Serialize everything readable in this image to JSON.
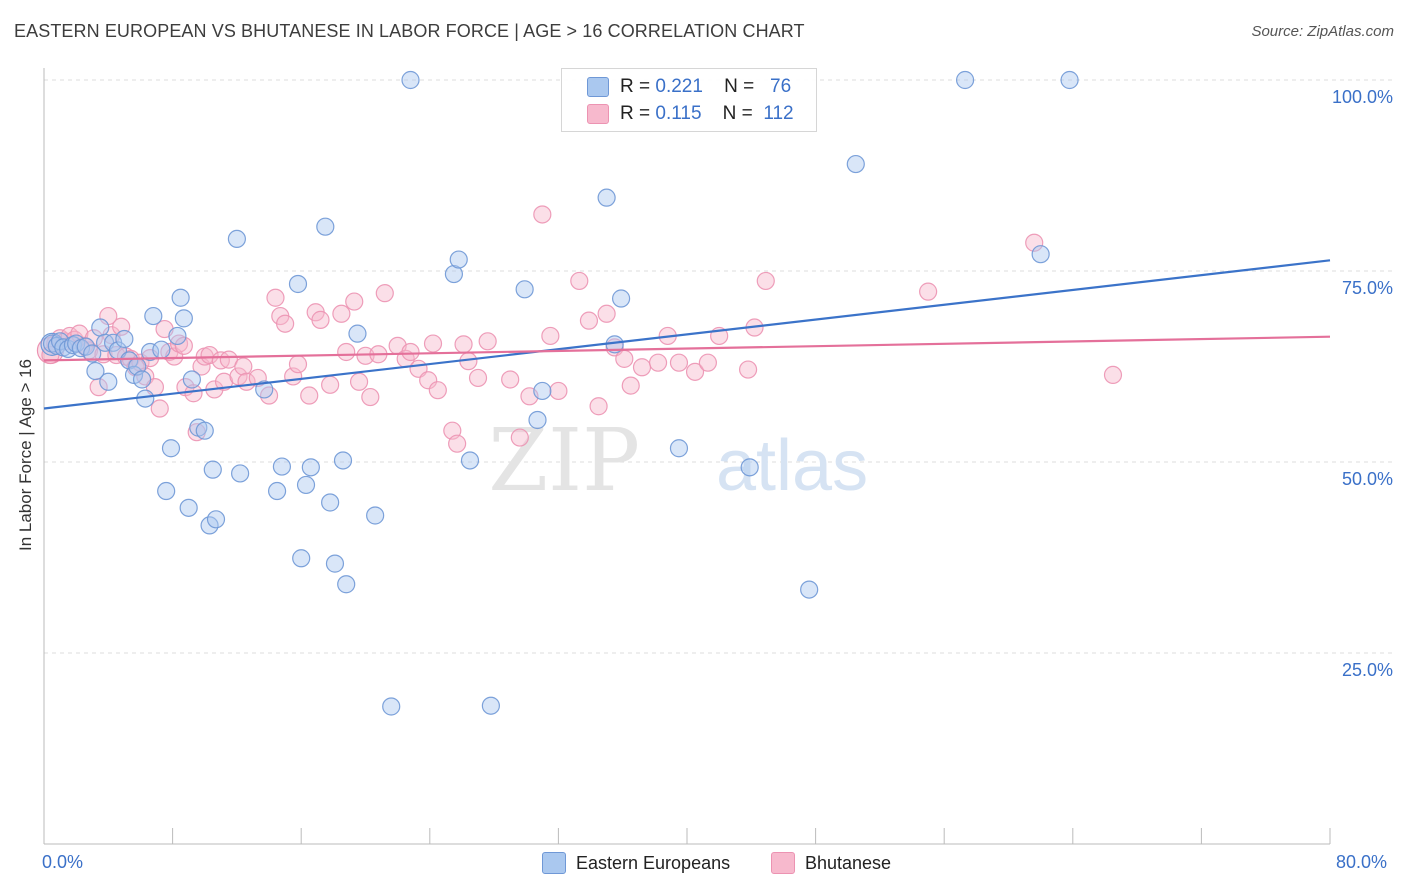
{
  "header": {
    "title": "EASTERN EUROPEAN VS BHUTANESE IN LABOR FORCE | AGE > 16 CORRELATION CHART",
    "source": "Source: ZipAtlas.com"
  },
  "legend": {
    "rows": [
      {
        "r_label": "R =",
        "r_value": "0.221",
        "n_label": "N =",
        "n_value": "76"
      },
      {
        "r_label": "R =",
        "r_value": "0.115",
        "n_label": "N =",
        "n_value": "112"
      }
    ]
  },
  "bottom_legend": {
    "eastern": "Eastern Europeans",
    "bhutanese": "Bhutanese"
  },
  "watermark": {
    "zip": "ZIP",
    "atlas": "atlas"
  },
  "colors": {
    "blue": "#3b73c9",
    "blue_fill": "#aac8ef",
    "pink": "#e4709a",
    "pink_fill": "#f7b9cd",
    "tick_text": "#3a70c8"
  },
  "chart_data": {
    "type": "scatter",
    "title": "EASTERN EUROPEAN VS BHUTANESE IN LABOR FORCE | AGE > 16 CORRELATION CHART",
    "xlabel": "",
    "ylabel": "In Labor Force | Age > 16",
    "xlim": [
      0,
      80
    ],
    "ylim": [
      0,
      104
    ],
    "x_tick_labels": [
      "0.0%",
      "80.0%"
    ],
    "y_tick_labels": [
      "25.0%",
      "50.0%",
      "75.0%",
      "100.0%"
    ],
    "y_ticks": [
      25,
      50,
      75,
      100
    ],
    "grid": "horizontal dashed",
    "legend_position": "top-center",
    "series": [
      {
        "name": "Eastern Europeans",
        "color": "#3b73c9",
        "trend": {
          "x": [
            0,
            80
          ],
          "y": [
            57.0,
            76.4
          ]
        },
        "points": [
          [
            0.5,
            65.5
          ],
          [
            0.8,
            65.2
          ],
          [
            1.0,
            65.8
          ],
          [
            1.2,
            65.0
          ],
          [
            1.5,
            64.8
          ],
          [
            1.8,
            65.3
          ],
          [
            2.0,
            65.5
          ],
          [
            2.3,
            64.9
          ],
          [
            2.6,
            65.1
          ],
          [
            3.0,
            64.2
          ],
          [
            3.2,
            61.9
          ],
          [
            3.5,
            67.6
          ],
          [
            3.8,
            65.6
          ],
          [
            4.0,
            60.5
          ],
          [
            4.3,
            65.6
          ],
          [
            4.6,
            64.6
          ],
          [
            5.0,
            66.1
          ],
          [
            5.3,
            63.3
          ],
          [
            5.6,
            61.4
          ],
          [
            5.8,
            62.5
          ],
          [
            6.1,
            60.8
          ],
          [
            6.3,
            58.3
          ],
          [
            6.6,
            64.4
          ],
          [
            6.8,
            69.1
          ],
          [
            7.3,
            64.7
          ],
          [
            7.6,
            46.2
          ],
          [
            7.9,
            51.8
          ],
          [
            8.3,
            66.5
          ],
          [
            8.5,
            71.5
          ],
          [
            8.7,
            68.8
          ],
          [
            9.0,
            44.0
          ],
          [
            9.2,
            60.8
          ],
          [
            9.6,
            54.5
          ],
          [
            10.0,
            54.1
          ],
          [
            10.3,
            41.7
          ],
          [
            10.5,
            49.0
          ],
          [
            10.7,
            42.5
          ],
          [
            12.0,
            79.2
          ],
          [
            12.2,
            48.5
          ],
          [
            13.7,
            59.5
          ],
          [
            14.5,
            46.2
          ],
          [
            14.8,
            49.4
          ],
          [
            15.8,
            73.3
          ],
          [
            16.0,
            37.4
          ],
          [
            16.3,
            47.0
          ],
          [
            16.6,
            49.3
          ],
          [
            17.5,
            80.8
          ],
          [
            17.8,
            44.7
          ],
          [
            18.1,
            36.7
          ],
          [
            18.6,
            50.2
          ],
          [
            18.8,
            34.0
          ],
          [
            19.5,
            66.8
          ],
          [
            20.6,
            43.0
          ],
          [
            21.6,
            18.0
          ],
          [
            22.8,
            100.0
          ],
          [
            25.5,
            74.6
          ],
          [
            25.8,
            76.5
          ],
          [
            26.5,
            50.2
          ],
          [
            27.8,
            18.1
          ],
          [
            29.9,
            72.6
          ],
          [
            30.7,
            55.5
          ],
          [
            31.0,
            59.3
          ],
          [
            35.0,
            84.6
          ],
          [
            35.5,
            65.4
          ],
          [
            35.9,
            71.4
          ],
          [
            39.5,
            51.8
          ],
          [
            43.9,
            49.3
          ],
          [
            47.6,
            33.3
          ],
          [
            50.5,
            89.0
          ],
          [
            57.3,
            100.0
          ],
          [
            62.0,
            77.2
          ],
          [
            63.8,
            100.0
          ]
        ]
      },
      {
        "name": "Bhutanese",
        "color": "#e4709a",
        "trend": {
          "x": [
            0,
            80
          ],
          "y": [
            63.3,
            66.4
          ]
        },
        "points": [
          [
            0.4,
            64.0
          ],
          [
            0.7,
            65.5
          ],
          [
            1.0,
            66.2
          ],
          [
            1.3,
            65.8
          ],
          [
            1.6,
            66.5
          ],
          [
            1.9,
            66.0
          ],
          [
            2.2,
            66.8
          ],
          [
            2.5,
            65.2
          ],
          [
            2.8,
            64.6
          ],
          [
            3.1,
            66.2
          ],
          [
            3.4,
            59.8
          ],
          [
            3.7,
            64.1
          ],
          [
            4.0,
            69.1
          ],
          [
            4.2,
            66.6
          ],
          [
            4.5,
            64.0
          ],
          [
            4.8,
            67.7
          ],
          [
            5.1,
            63.8
          ],
          [
            5.4,
            63.5
          ],
          [
            5.7,
            62.4
          ],
          [
            6.0,
            63.0
          ],
          [
            6.3,
            61.2
          ],
          [
            6.6,
            63.6
          ],
          [
            6.9,
            59.8
          ],
          [
            7.2,
            57.0
          ],
          [
            7.5,
            67.4
          ],
          [
            7.8,
            64.4
          ],
          [
            8.1,
            63.8
          ],
          [
            8.4,
            65.5
          ],
          [
            8.7,
            65.2
          ],
          [
            8.8,
            59.8
          ],
          [
            9.3,
            59.0
          ],
          [
            9.5,
            53.9
          ],
          [
            9.8,
            62.5
          ],
          [
            10.0,
            63.8
          ],
          [
            10.3,
            64.0
          ],
          [
            10.6,
            59.5
          ],
          [
            11.0,
            63.3
          ],
          [
            11.2,
            60.5
          ],
          [
            11.5,
            63.4
          ],
          [
            12.1,
            61.2
          ],
          [
            12.4,
            62.5
          ],
          [
            12.6,
            60.5
          ],
          [
            13.3,
            61.0
          ],
          [
            14.0,
            58.7
          ],
          [
            14.4,
            71.5
          ],
          [
            14.7,
            69.1
          ],
          [
            15.0,
            68.1
          ],
          [
            15.5,
            61.2
          ],
          [
            15.8,
            62.8
          ],
          [
            16.5,
            58.7
          ],
          [
            16.9,
            69.6
          ],
          [
            17.2,
            68.6
          ],
          [
            17.8,
            60.1
          ],
          [
            18.5,
            69.4
          ],
          [
            18.8,
            64.4
          ],
          [
            19.3,
            71.0
          ],
          [
            19.6,
            60.5
          ],
          [
            20.0,
            63.9
          ],
          [
            20.3,
            58.5
          ],
          [
            20.8,
            64.1
          ],
          [
            21.2,
            72.1
          ],
          [
            22.0,
            65.2
          ],
          [
            22.5,
            63.5
          ],
          [
            22.8,
            64.4
          ],
          [
            23.3,
            62.2
          ],
          [
            23.9,
            60.7
          ],
          [
            24.2,
            65.5
          ],
          [
            24.5,
            59.4
          ],
          [
            25.4,
            54.1
          ],
          [
            25.7,
            52.4
          ],
          [
            26.1,
            65.4
          ],
          [
            26.4,
            63.2
          ],
          [
            27.0,
            61.0
          ],
          [
            27.6,
            65.8
          ],
          [
            29.0,
            60.8
          ],
          [
            29.6,
            53.2
          ],
          [
            30.2,
            58.6
          ],
          [
            31.0,
            82.4
          ],
          [
            31.5,
            66.5
          ],
          [
            32.0,
            59.3
          ],
          [
            33.3,
            73.7
          ],
          [
            33.9,
            68.5
          ],
          [
            34.5,
            57.3
          ],
          [
            35.0,
            69.4
          ],
          [
            35.5,
            65.0
          ],
          [
            36.1,
            63.5
          ],
          [
            36.5,
            60.0
          ],
          [
            37.2,
            62.4
          ],
          [
            38.2,
            63.0
          ],
          [
            38.8,
            66.5
          ],
          [
            39.5,
            63.0
          ],
          [
            40.5,
            61.8
          ],
          [
            41.3,
            63.0
          ],
          [
            42.0,
            66.5
          ],
          [
            43.8,
            62.1
          ],
          [
            44.2,
            67.6
          ],
          [
            44.9,
            73.7
          ],
          [
            55.0,
            72.3
          ],
          [
            61.6,
            78.7
          ],
          [
            66.5,
            61.4
          ]
        ]
      }
    ]
  }
}
